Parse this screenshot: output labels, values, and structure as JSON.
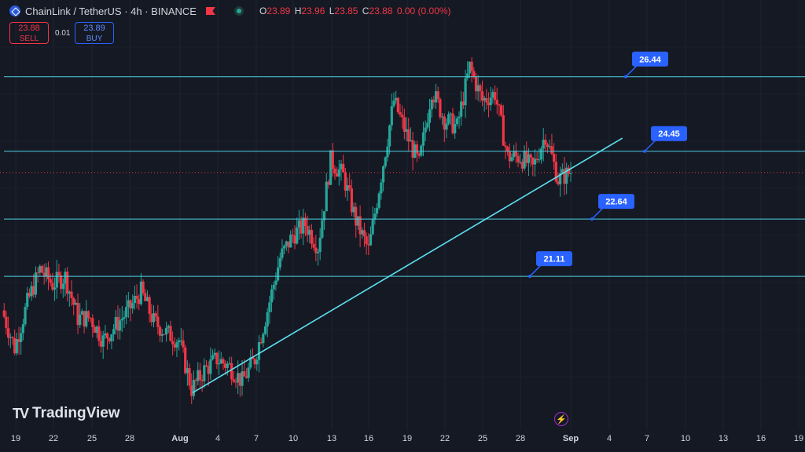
{
  "header": {
    "symbol": "ChainLink / TetherUS · 4h · BINANCE",
    "open_label": "O",
    "open": "23.89",
    "high_label": "H",
    "high": "23.96",
    "low_label": "L",
    "low": "23.85",
    "close_label": "C",
    "close": "23.88",
    "change": "0.00 (0.00%)"
  },
  "trade": {
    "sell_price": "23.88",
    "sell_label": "SELL",
    "spread": "0.01",
    "buy_price": "23.89",
    "buy_label": "BUY"
  },
  "brand": {
    "name": "TradingView"
  },
  "colors": {
    "up": "#26a69a",
    "down": "#f23645",
    "level_line": "#4dd0e1",
    "trendline": "#5ce1f0",
    "label_bg": "#2962ff",
    "background": "#151924"
  },
  "chart_data": {
    "type": "candlestick",
    "symbol": "LINKUSDT",
    "timeframe": "4h",
    "x_ticks": [
      "19",
      "22",
      "25",
      "28",
      "Aug",
      "4",
      "7",
      "10",
      "13",
      "16",
      "19",
      "22",
      "25",
      "28",
      "Sep",
      "4",
      "7",
      "10",
      "13",
      "16",
      "19"
    ],
    "ylim": [
      17.8,
      27.4
    ],
    "y_ticks_shown": false,
    "last_price": 23.88,
    "horizontal_levels": [
      26.44,
      24.45,
      22.64,
      21.11
    ],
    "level_labels": [
      "26.44",
      "24.45",
      "22.64",
      "21.11"
    ],
    "trendline": {
      "from": [
        "Aug 2",
        18.0
      ],
      "to": [
        "Sep 5",
        24.8
      ]
    },
    "price_path": [
      [
        "Jul 18",
        20.2
      ],
      [
        "Jul 19",
        19.2
      ],
      [
        "Jul 20",
        20.4
      ],
      [
        "Jul 21",
        21.3
      ],
      [
        "Jul 22",
        20.9
      ],
      [
        "Jul 23",
        21.1
      ],
      [
        "Jul 24",
        20.0
      ],
      [
        "Jul 25",
        20.0
      ],
      [
        "Jul 26",
        19.4
      ],
      [
        "Jul 27",
        19.8
      ],
      [
        "Jul 28",
        20.2
      ],
      [
        "Jul 29",
        20.7
      ],
      [
        "Jul 30",
        19.9
      ],
      [
        "Jul 31",
        19.6
      ],
      [
        "Aug 1",
        19.4
      ],
      [
        "Aug 2",
        18.1
      ],
      [
        "Aug 3",
        18.6
      ],
      [
        "Aug 4",
        18.9
      ],
      [
        "Aug 5",
        18.7
      ],
      [
        "Aug 6",
        18.3
      ],
      [
        "Aug 7",
        18.9
      ],
      [
        "Aug 8",
        20.2
      ],
      [
        "Aug 9",
        21.6
      ],
      [
        "Aug 10",
        22.2
      ],
      [
        "Aug 11",
        22.5
      ],
      [
        "Aug 12",
        21.9
      ],
      [
        "Aug 13",
        24.2
      ],
      [
        "Aug 14",
        23.8
      ],
      [
        "Aug 15",
        22.6
      ],
      [
        "Aug 16",
        21.8
      ],
      [
        "Aug 17",
        23.8
      ],
      [
        "Aug 18",
        25.8
      ],
      [
        "Aug 19",
        24.9
      ],
      [
        "Aug 20",
        24.1
      ],
      [
        "Aug 21",
        26.1
      ],
      [
        "Aug 22",
        25.3
      ],
      [
        "Aug 23",
        25.1
      ],
      [
        "Aug 24",
        26.7
      ],
      [
        "Aug 25",
        25.8
      ],
      [
        "Aug 26",
        26.0
      ],
      [
        "Aug 27",
        24.3
      ],
      [
        "Aug 28",
        24.3
      ],
      [
        "Aug 29",
        24.0
      ],
      [
        "Aug 30",
        24.9
      ],
      [
        "Aug 31",
        23.7
      ],
      [
        "Sep 1",
        23.9
      ]
    ]
  }
}
